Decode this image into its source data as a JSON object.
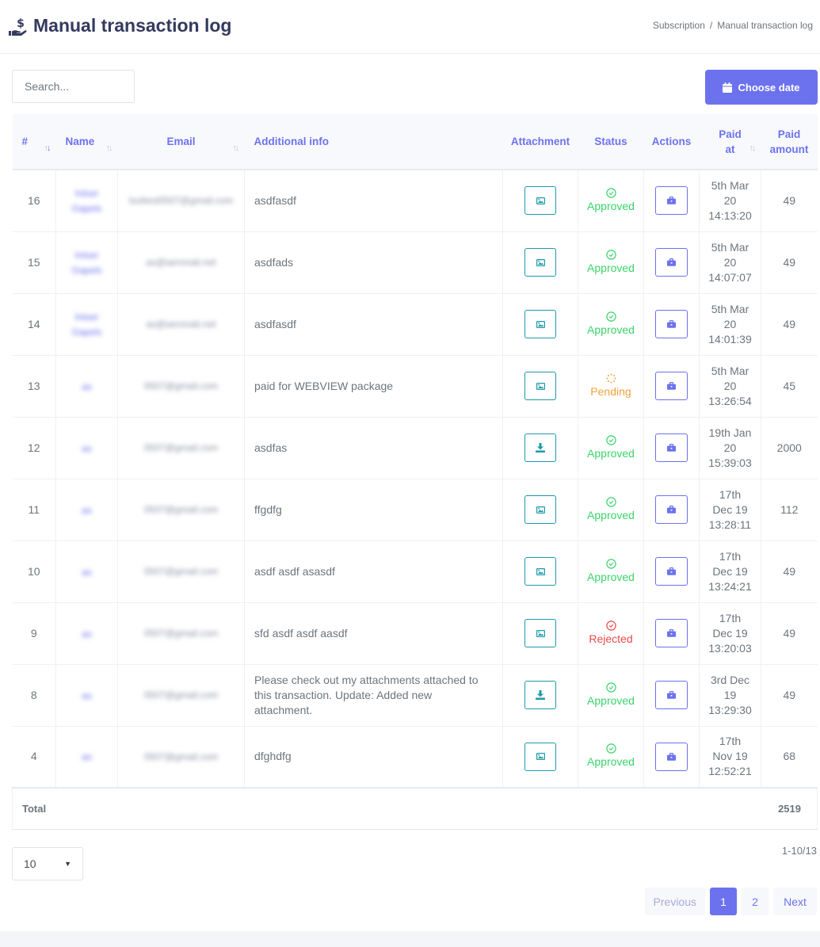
{
  "header": {
    "title": "Manual transaction log",
    "icon": "hand-dollar-icon",
    "breadcrumb": [
      "Subscription",
      "Manual transaction log"
    ]
  },
  "toolbar": {
    "search_placeholder": "Search...",
    "choose_date_label": "Choose date"
  },
  "table": {
    "columns": {
      "id": "#",
      "name": "Name",
      "email": "Email",
      "info": "Additional info",
      "attachment": "Attachment",
      "status": "Status",
      "actions": "Actions",
      "paid_at": "Paid at",
      "paid_amount": "Paid amount"
    },
    "rows": [
      {
        "id": "16",
        "name": "Intser Gapels",
        "email": "lsottest0507@gmail.com",
        "info": "asdfasdf",
        "attachment": "image",
        "status": "Approved",
        "date": "5th Mar",
        "date2": "20",
        "time": "14:13:20",
        "amount": "49"
      },
      {
        "id": "15",
        "name": "Intser Gapels",
        "email": "as@aeronati.net",
        "info": "asdfads",
        "attachment": "image",
        "status": "Approved",
        "date": "5th Mar",
        "date2": "20",
        "time": "14:07:07",
        "amount": "49"
      },
      {
        "id": "14",
        "name": "Intser Gapels",
        "email": "as@aeronati.net",
        "info": "asdfasdf",
        "attachment": "image",
        "status": "Approved",
        "date": "5th Mar",
        "date2": "20",
        "time": "14:01:39",
        "amount": "49"
      },
      {
        "id": "13",
        "name": "as",
        "email": "0507@gmail.com",
        "info": "paid for WEBVIEW package",
        "attachment": "image",
        "status": "Pending",
        "date": "5th Mar",
        "date2": "20",
        "time": "13:26:54",
        "amount": "45"
      },
      {
        "id": "12",
        "name": "as",
        "email": "0507@gmail.com",
        "info": "asdfas",
        "attachment": "download",
        "status": "Approved",
        "date": "19th Jan",
        "date2": "20",
        "time": "15:39:03",
        "amount": "2000"
      },
      {
        "id": "11",
        "name": "as",
        "email": "0507@gmail.com",
        "info": "ffgdfg",
        "attachment": "image",
        "status": "Approved",
        "date": "17th",
        "date2": "Dec 19",
        "time": "13:28:11",
        "amount": "112"
      },
      {
        "id": "10",
        "name": "as",
        "email": "0507@gmail.com",
        "info": "asdf asdf asasdf",
        "attachment": "image",
        "status": "Approved",
        "date": "17th",
        "date2": "Dec 19",
        "time": "13:24:21",
        "amount": "49"
      },
      {
        "id": "9",
        "name": "as",
        "email": "0507@gmail.com",
        "info": "sfd asdf asdf aasdf",
        "attachment": "image",
        "status": "Rejected",
        "date": "17th",
        "date2": "Dec 19",
        "time": "13:20:03",
        "amount": "49"
      },
      {
        "id": "8",
        "name": "as",
        "email": "0507@gmail.com",
        "info": "Please check out my attachments attached to this transaction. Update: Added new attachment.",
        "attachment": "download",
        "status": "Approved",
        "date": "3rd Dec",
        "date2": "19",
        "time": "13:29:30",
        "amount": "49"
      },
      {
        "id": "4",
        "name": "as",
        "email": "0507@gmail.com",
        "info": "dfghdfg",
        "attachment": "image",
        "status": "Approved",
        "date": "17th",
        "date2": "Nov 19",
        "time": "12:52:21",
        "amount": "68"
      }
    ],
    "total_label": "Total",
    "total_value": "2519"
  },
  "pagination": {
    "per_page": "10",
    "range": "1-10/13",
    "previous": "Previous",
    "pages": [
      "1",
      "2"
    ],
    "active_page": "1",
    "next": "Next"
  },
  "colors": {
    "primary": "#6c72ee",
    "approved": "#3ad36b",
    "pending": "#f3a13c",
    "rejected": "#ea4a4a",
    "attachment": "#1a9bab"
  }
}
